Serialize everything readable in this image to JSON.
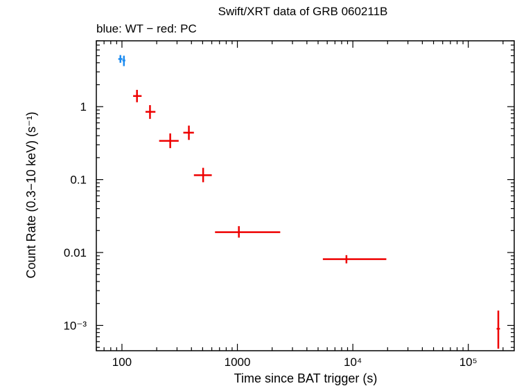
{
  "chart_data": {
    "type": "scatter",
    "title": "Swift/XRT data of GRB 060211B",
    "subtitle": "blue: WT − red: PC",
    "xlabel": "Time since BAT trigger (s)",
    "ylabel": "Count Rate (0.3−10 keV) (s⁻¹)",
    "xscale": "log",
    "yscale": "log",
    "xlim": [
      60,
      250000
    ],
    "ylim": [
      0.00045,
      8
    ],
    "x_ticks": [
      {
        "value": 100,
        "label": "100"
      },
      {
        "value": 1000,
        "label": "1000"
      },
      {
        "value": 10000,
        "label": "10⁴"
      },
      {
        "value": 100000,
        "label": "10⁵"
      }
    ],
    "y_ticks": [
      {
        "value": 1,
        "label": "1"
      },
      {
        "value": 0.1,
        "label": "0.1"
      },
      {
        "value": 0.01,
        "label": "0.01"
      },
      {
        "value": 0.001,
        "label": "10⁻³"
      }
    ],
    "series": [
      {
        "name": "WT",
        "color": "#1e8cf0",
        "points": [
          {
            "x": 97,
            "xlo": 93,
            "xhi": 101,
            "y": 4.5,
            "ylo": 4.0,
            "yhi": 5.1
          },
          {
            "x": 104,
            "xlo": 101,
            "xhi": 107,
            "y": 4.3,
            "ylo": 3.6,
            "yhi": 5.0
          }
        ]
      },
      {
        "name": "PC",
        "color": "#ee0000",
        "points": [
          {
            "x": 135,
            "xlo": 125,
            "xhi": 148,
            "y": 1.4,
            "ylo": 1.15,
            "yhi": 1.7
          },
          {
            "x": 175,
            "xlo": 160,
            "xhi": 195,
            "y": 0.85,
            "ylo": 0.68,
            "yhi": 1.05
          },
          {
            "x": 262,
            "xlo": 210,
            "xhi": 310,
            "y": 0.34,
            "ylo": 0.27,
            "yhi": 0.43
          },
          {
            "x": 380,
            "xlo": 340,
            "xhi": 420,
            "y": 0.44,
            "ylo": 0.35,
            "yhi": 0.55
          },
          {
            "x": 505,
            "xlo": 420,
            "xhi": 600,
            "y": 0.115,
            "ylo": 0.092,
            "yhi": 0.145
          },
          {
            "x": 1030,
            "xlo": 640,
            "xhi": 2350,
            "y": 0.019,
            "ylo": 0.016,
            "yhi": 0.023
          },
          {
            "x": 8800,
            "xlo": 5500,
            "xhi": 19500,
            "y": 0.0081,
            "ylo": 0.0071,
            "yhi": 0.0092
          },
          {
            "x": 182000,
            "xlo": 176000,
            "xhi": 188000,
            "y": 0.0009,
            "ylo": 0.00048,
            "yhi": 0.0016
          }
        ]
      }
    ]
  }
}
